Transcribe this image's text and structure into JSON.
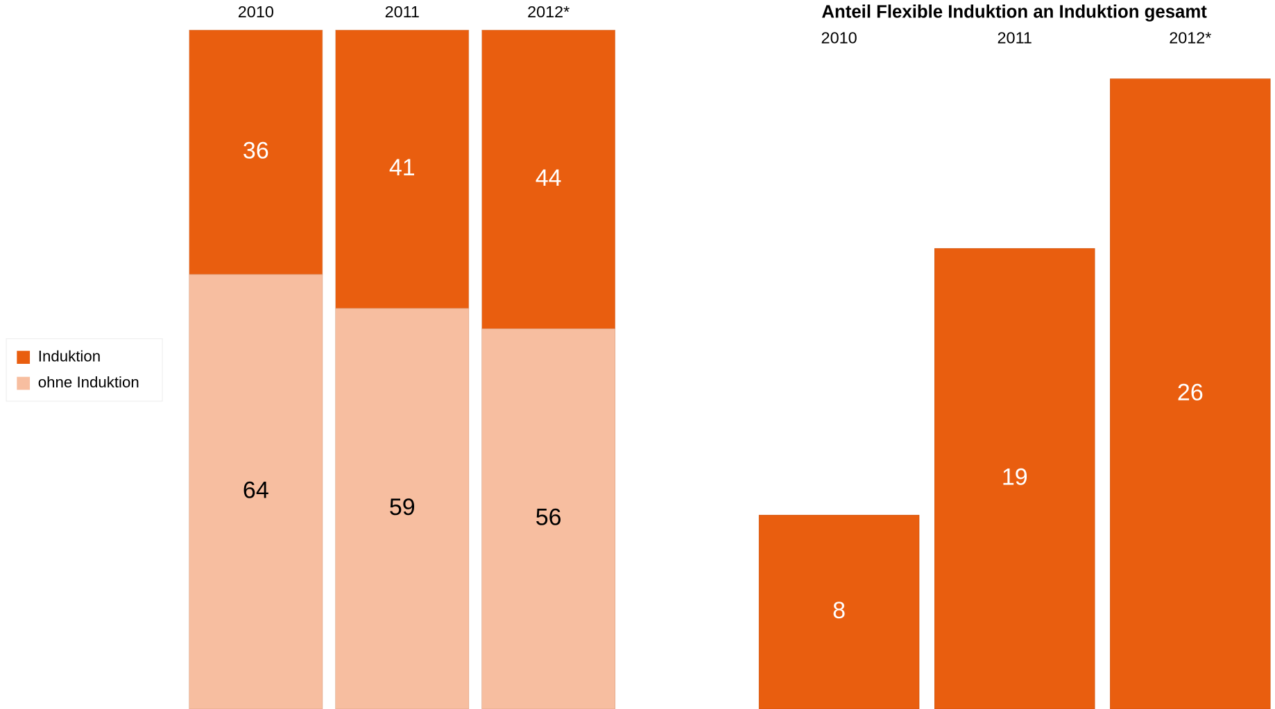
{
  "chart_data": [
    {
      "type": "stacked_bar",
      "categories": [
        "2010",
        "2011",
        "2012*"
      ],
      "series": [
        {
          "name": "Induktion",
          "color": "#e95e0f",
          "values": [
            36,
            41,
            44
          ]
        },
        {
          "name": "ohne Induktion",
          "color": "#f7bea0",
          "values": [
            64,
            59,
            56
          ]
        }
      ]
    },
    {
      "type": "bar",
      "title": "Anteil Flexible Induktion an Induktion gesamt",
      "categories": [
        "2010",
        "2011",
        "2012*"
      ],
      "values": [
        8,
        19,
        26
      ],
      "color": "#e95e0f"
    }
  ]
}
